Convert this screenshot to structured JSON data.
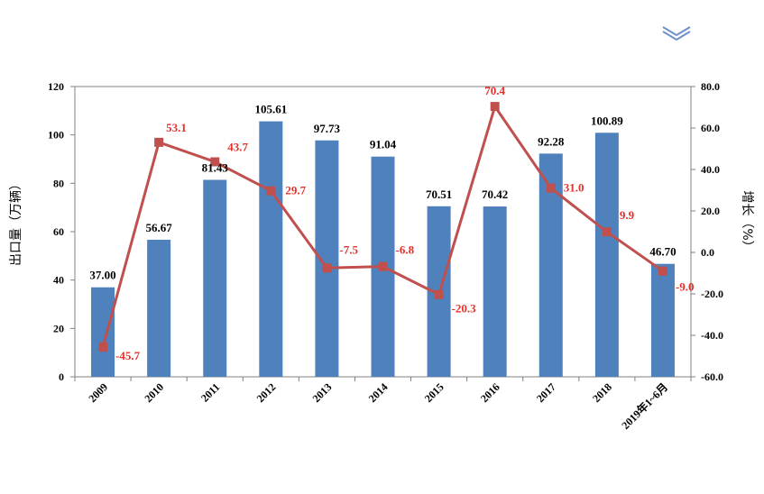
{
  "chart_data": {
    "type": "bar",
    "categories": [
      "2009",
      "2010",
      "2011",
      "2012",
      "2013",
      "2014",
      "2015",
      "2016",
      "2017",
      "2018",
      "2019年1~6月"
    ],
    "series": [
      {
        "values": [
          37.0,
          56.67,
          81.43,
          105.61,
          97.73,
          91.04,
          70.51,
          70.42,
          92.28,
          100.89,
          46.7
        ],
        "color": "#4f81bd",
        "kind": "bar",
        "axis": "left"
      },
      {
        "values": [
          -45.7,
          53.1,
          43.7,
          29.7,
          -7.5,
          -6.8,
          -20.3,
          70.4,
          31.0,
          9.9,
          -9.0
        ],
        "color": "#c0504d",
        "kind": "line",
        "axis": "right"
      }
    ],
    "bar_labels": [
      "37.00",
      "56.67",
      "81.43",
      "105.61",
      "97.73",
      "91.04",
      "70.51",
      "70.42",
      "92.28",
      "100.89",
      "46.70"
    ],
    "line_labels": [
      "-45.7",
      "53.1",
      "43.7",
      "29.7",
      "-7.5",
      "-6.8",
      "-20.3",
      "70.4",
      "31.0",
      "9.9",
      "-9.0"
    ],
    "ylabel": "出口量（万辆）",
    "y2label": "增长（%）",
    "ylim": [
      0,
      120
    ],
    "y2lim": [
      -60,
      80
    ],
    "yticks": [
      "0",
      "20",
      "40",
      "60",
      "80",
      "100",
      "120"
    ],
    "y2ticks": [
      "-60.0",
      "-40.0",
      "-20.0",
      "0.0",
      "20.0",
      "40.0",
      "60.0",
      "80.0"
    ],
    "label_color": "#e8302a",
    "grid": false,
    "legend": "none"
  },
  "decor": {
    "icon": "chevron-double-down-icon",
    "color": "#6f8fc9"
  }
}
